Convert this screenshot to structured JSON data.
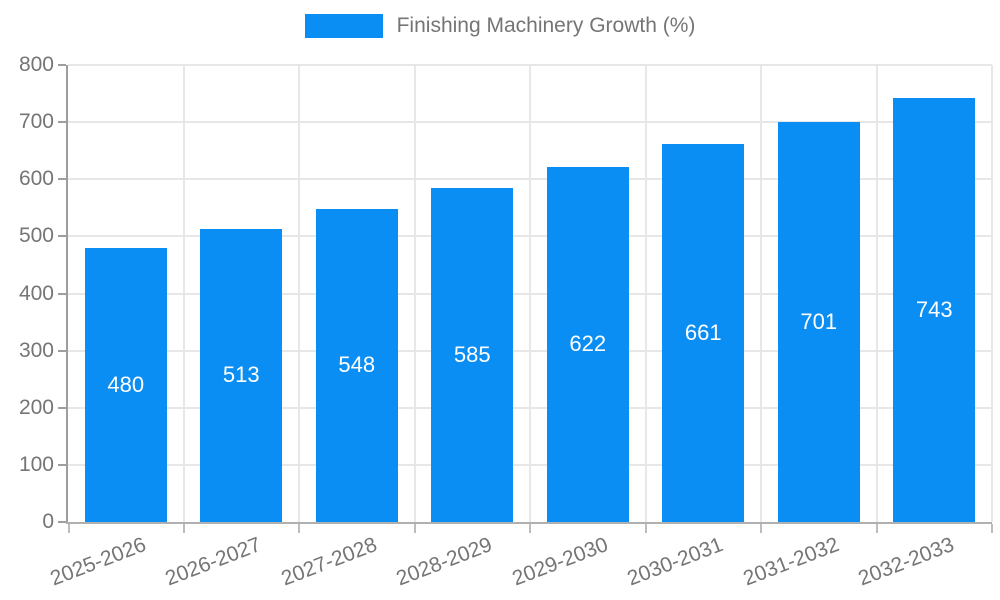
{
  "legend": {
    "label": "Finishing Machinery Growth (%)"
  },
  "chart_data": {
    "type": "bar",
    "title": "",
    "categories": [
      "2025-2026",
      "2026-2027",
      "2027-2028",
      "2028-2029",
      "2029-2030",
      "2030-2031",
      "2031-2032",
      "2032-2033"
    ],
    "series": [
      {
        "name": "Finishing Machinery Growth (%)",
        "values": [
          480,
          513,
          548,
          585,
          622,
          661,
          701,
          743
        ]
      }
    ],
    "xlabel": "",
    "ylabel": "",
    "ylim": [
      0,
      800
    ],
    "ytick_step": 100,
    "grid": true,
    "legend_position": "top",
    "bar_color": "#0a8ef4",
    "value_label_color": "#ffffff",
    "value_label_position": "middle"
  },
  "colors": {
    "accent": "#0a8ef4",
    "text": "#757575",
    "gridline": "#e7e7e7",
    "axis": "#9e9e9e",
    "background": "#ffffff"
  }
}
